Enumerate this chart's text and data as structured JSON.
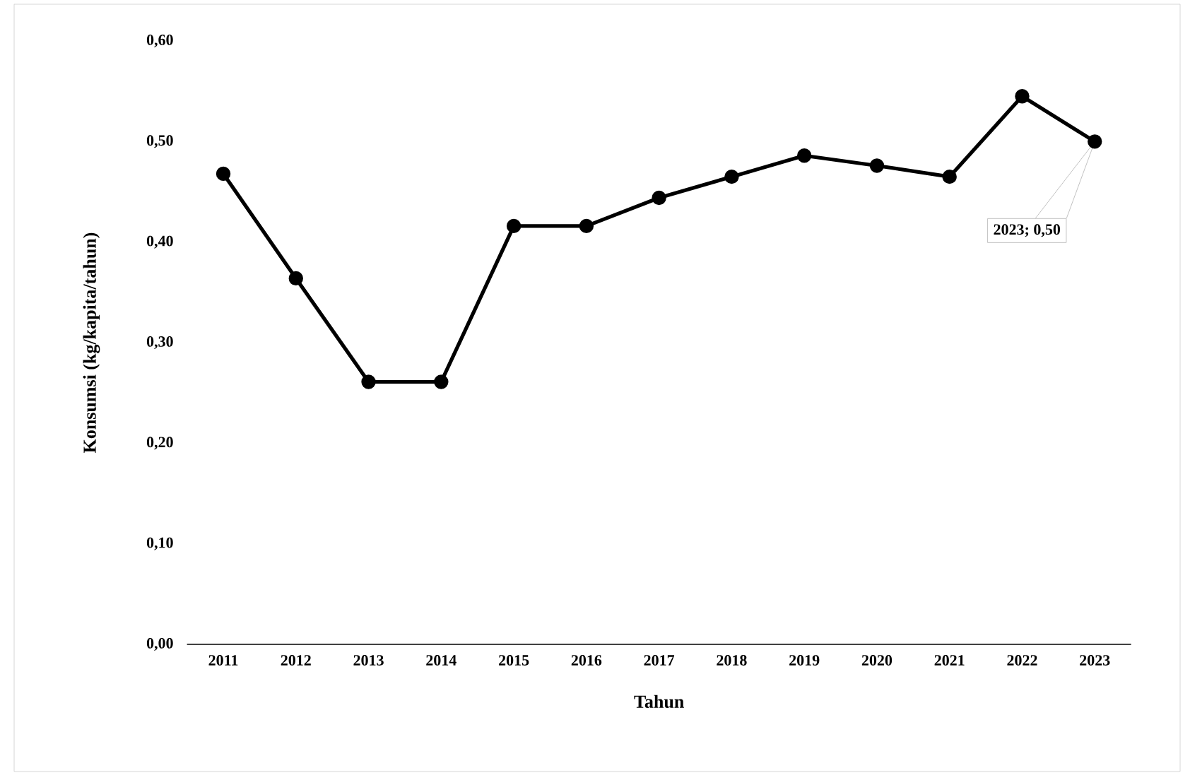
{
  "chart_data": {
    "type": "line",
    "xlabel": "Tahun",
    "ylabel": "Konsumsi (kg/kapita/tahun)",
    "categories": [
      "2011",
      "2012",
      "2013",
      "2014",
      "2015",
      "2016",
      "2017",
      "2018",
      "2019",
      "2020",
      "2021",
      "2022",
      "2023"
    ],
    "series": [
      {
        "color": "#000000",
        "values": [
          0.468,
          0.364,
          0.261,
          0.261,
          0.416,
          0.416,
          0.444,
          0.465,
          0.486,
          0.476,
          0.465,
          0.545,
          0.5
        ]
      }
    ],
    "ylim": [
      0,
      0.6
    ],
    "yticks": [
      {
        "value": 0,
        "label": "0,00"
      },
      {
        "value": 0.1,
        "label": "0,10"
      },
      {
        "value": 0.2,
        "label": "0,20"
      },
      {
        "value": 0.3,
        "label": "0,30"
      },
      {
        "value": 0.4,
        "label": "0,40"
      },
      {
        "value": 0.5,
        "label": "0,50"
      },
      {
        "value": 0.6,
        "label": "0,60"
      }
    ],
    "annotations": [
      "2023; 0,50"
    ],
    "marker": "circle",
    "line_style": "solid",
    "grid": false
  }
}
